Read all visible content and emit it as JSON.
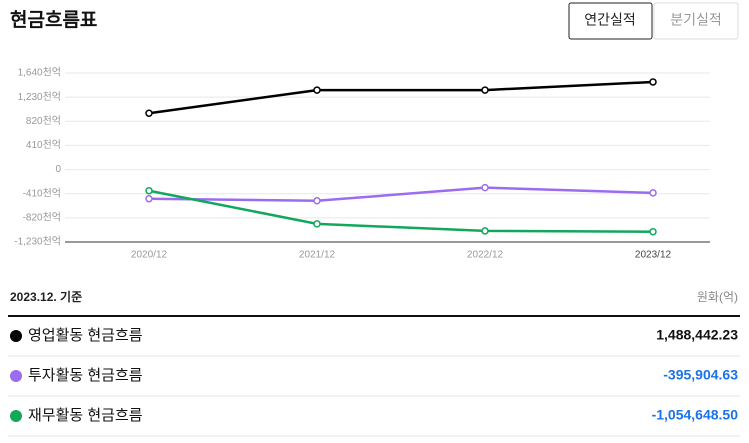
{
  "header": {
    "title": "현금흐름표",
    "tabs": [
      "연간실적",
      "분기실적"
    ]
  },
  "chart_data": {
    "type": "line",
    "categories": [
      "2020/12",
      "2021/12",
      "2022/12",
      "2023/12"
    ],
    "series": [
      {
        "name": "영업활동 현금흐름",
        "color": "#000000",
        "values": [
          957,
          1350,
          1350,
          1488
        ]
      },
      {
        "name": "투자활동 현금흐름",
        "color": "#9b6cf0",
        "values": [
          -495,
          -530,
          -307,
          -396
        ]
      },
      {
        "name": "재무활동 현금흐름",
        "color": "#12a85c",
        "values": [
          -359,
          -922,
          -1042,
          -1055
        ]
      }
    ],
    "ylim": [
      -1230,
      1640
    ],
    "yticks": [
      {
        "value": -1230,
        "label": "-1,230천억"
      },
      {
        "value": -820,
        "label": "-820천억"
      },
      {
        "value": -410,
        "label": "-410천억"
      },
      0,
      {
        "value": 410,
        "label": "410천억"
      },
      {
        "value": 820,
        "label": "820천억"
      },
      {
        "value": 1230,
        "label": "1,230천억"
      },
      {
        "value": 1640,
        "label": "1,640천억"
      }
    ],
    "grid": true
  },
  "summary": {
    "date": "2023.12. 기준",
    "unit": "원화(억)",
    "values": [
      "1,488,442.23",
      "-395,904.63",
      "-1,054,648.50"
    ]
  }
}
